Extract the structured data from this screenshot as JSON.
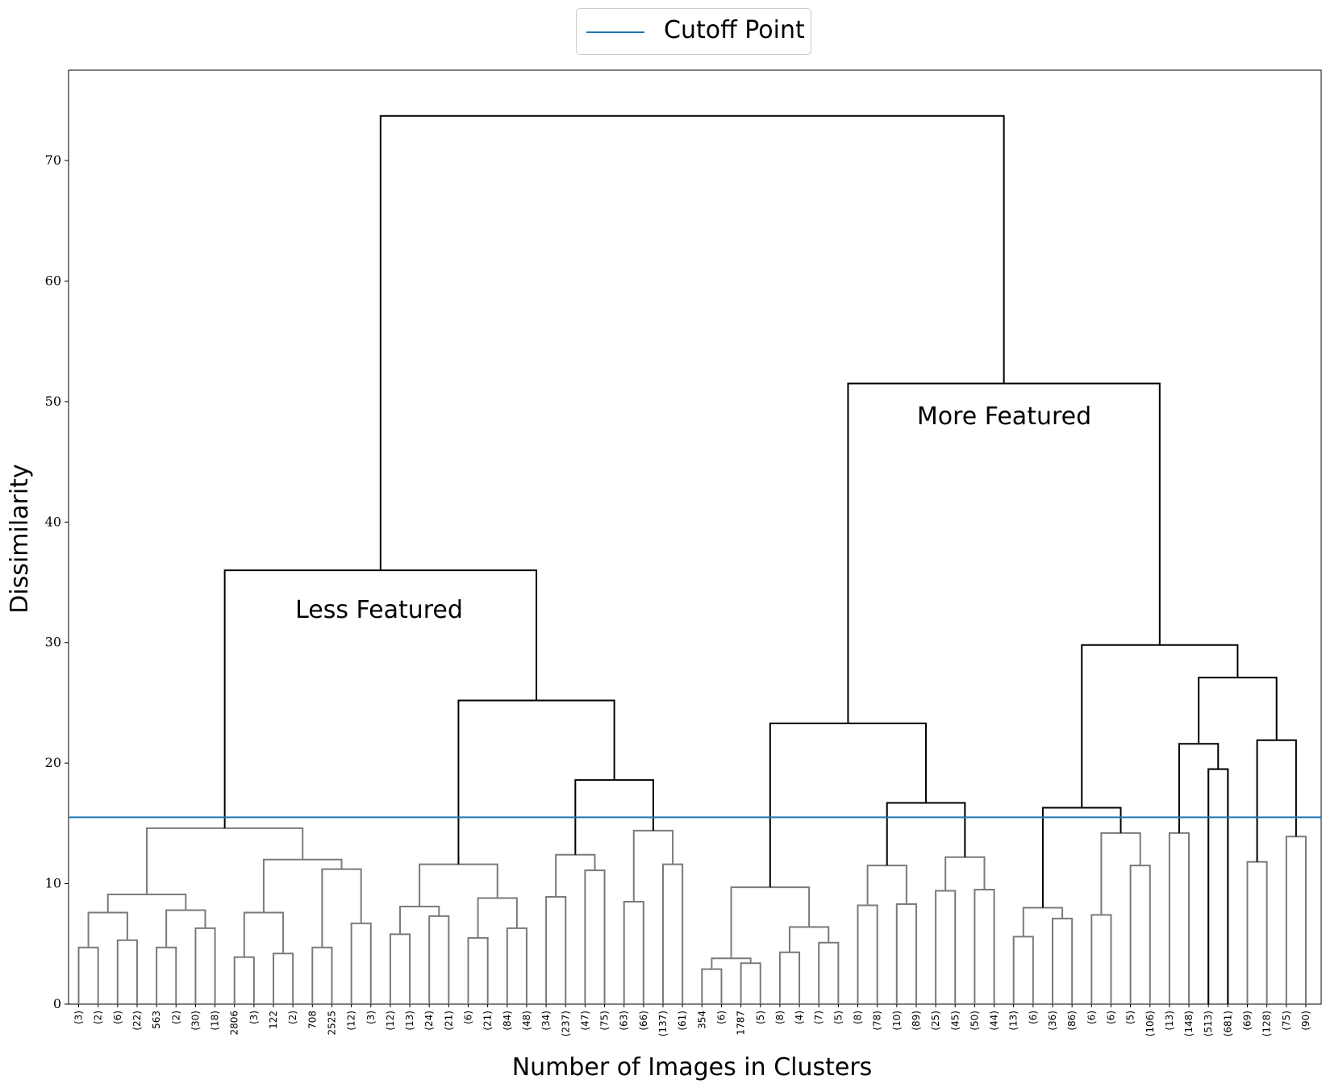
{
  "chart_data": {
    "type": "dendrogram",
    "title": "",
    "xlabel": "Number of Images in Clusters",
    "ylabel": "Dissimilarity",
    "ylim": [
      0,
      77.5
    ],
    "yticks": [
      0,
      10,
      20,
      30,
      40,
      50,
      60,
      70
    ],
    "grid": false,
    "legend": {
      "placement": "top-center",
      "entries": [
        {
          "name": "Cutoff Point",
          "color": "#1f77b4"
        }
      ]
    },
    "cutoff": 15.5,
    "leaf_labels": [
      "(3)",
      "(2)",
      "(6)",
      "(22)",
      "563",
      "(2)",
      "(30)",
      "(18)",
      "2806",
      "(3)",
      "122",
      "(2)",
      "708",
      "2525",
      "(12)",
      "(3)",
      "(12)",
      "(13)",
      "(24)",
      "(21)",
      "(6)",
      "(21)",
      "(84)",
      "(48)",
      "(34)",
      "(237)",
      "(47)",
      "(75)",
      "(63)",
      "(66)",
      "(137)",
      "(61)",
      "354",
      "(6)",
      "1787",
      "(5)",
      "(8)",
      "(4)",
      "(7)",
      "(5)",
      "(8)",
      "(78)",
      "(10)",
      "(89)",
      "(25)",
      "(45)",
      "(50)",
      "(44)",
      "(13)",
      "(6)",
      "(36)",
      "(86)",
      "(6)",
      "(6)",
      "(5)",
      "(106)",
      "(13)",
      "(148)",
      "(513)",
      "(681)",
      "(69)",
      "(128)",
      "(75)",
      "(90)"
    ],
    "leaf_heights": [
      4.7,
      4.7,
      5.3,
      5.3,
      4.7,
      4.7,
      6.3,
      6.3,
      3.9,
      3.9,
      4.2,
      4.2,
      4.7,
      4.7,
      6.7,
      6.7,
      5.8,
      5.8,
      7.3,
      7.3,
      5.5,
      5.5,
      6.3,
      6.3,
      8.9,
      8.9,
      11.1,
      11.1,
      8.5,
      8.5,
      11.6,
      11.6,
      2.9,
      2.9,
      3.4,
      3.4,
      4.3,
      4.3,
      5.1,
      5.1,
      8.2,
      8.2,
      8.3,
      8.3,
      9.4,
      9.4,
      9.5,
      9.5,
      5.6,
      5.6,
      7.1,
      7.1,
      7.4,
      7.4,
      11.5,
      11.5,
      14.2,
      14.2,
      19.5,
      19.5,
      11.8,
      11.8,
      13.9,
      13.9
    ],
    "merges": [
      {
        "left": 0,
        "right": 2,
        "height": 7.6,
        "group": "below"
      },
      {
        "left": 4,
        "right": 6,
        "height": 7.8,
        "group": "below"
      },
      {
        "left": 0,
        "right": 4,
        "height": 9.1,
        "group": "below"
      },
      {
        "left": 8,
        "right": 10,
        "height": 7.6,
        "group": "below"
      },
      {
        "left": 12,
        "right": 14,
        "height": 11.2,
        "group": "below"
      },
      {
        "left": 8,
        "right": 12,
        "height": 12.0,
        "group": "below"
      },
      {
        "left": 0,
        "right": 8,
        "height": 14.6,
        "group": "below"
      },
      {
        "left": 16,
        "right": 18,
        "height": 8.1,
        "group": "below"
      },
      {
        "left": 20,
        "right": 22,
        "height": 8.8,
        "group": "below"
      },
      {
        "left": 16,
        "right": 20,
        "height": 11.6,
        "group": "below"
      },
      {
        "left": 24,
        "right": 26,
        "height": 12.4,
        "group": "below"
      },
      {
        "left": 28,
        "right": 30,
        "height": 14.4,
        "group": "below"
      },
      {
        "left": 34,
        "right": 34.01,
        "height": 3.8,
        "group": "below"
      },
      {
        "left": 36,
        "right": 38,
        "height": 6.4,
        "group": "below"
      },
      {
        "left": 32,
        "right": 36,
        "height": 9.7,
        "group": "below"
      },
      {
        "left": 40,
        "right": 42,
        "height": 11.5,
        "group": "below"
      },
      {
        "left": 44,
        "right": 46,
        "height": 12.2,
        "group": "below"
      },
      {
        "left": 48,
        "right": 50,
        "height": 8.0,
        "group": "below"
      },
      {
        "left": 54,
        "right": 54.01,
        "height": 14.2,
        "group": "below"
      }
    ],
    "upper_links": [
      {
        "label": "root",
        "height": 73.7
      },
      {
        "label": "Less Featured",
        "height": 36.0
      },
      {
        "label": "More Featured",
        "height": 51.5
      }
    ],
    "annotations": [
      "Less Featured",
      "More Featured"
    ]
  }
}
